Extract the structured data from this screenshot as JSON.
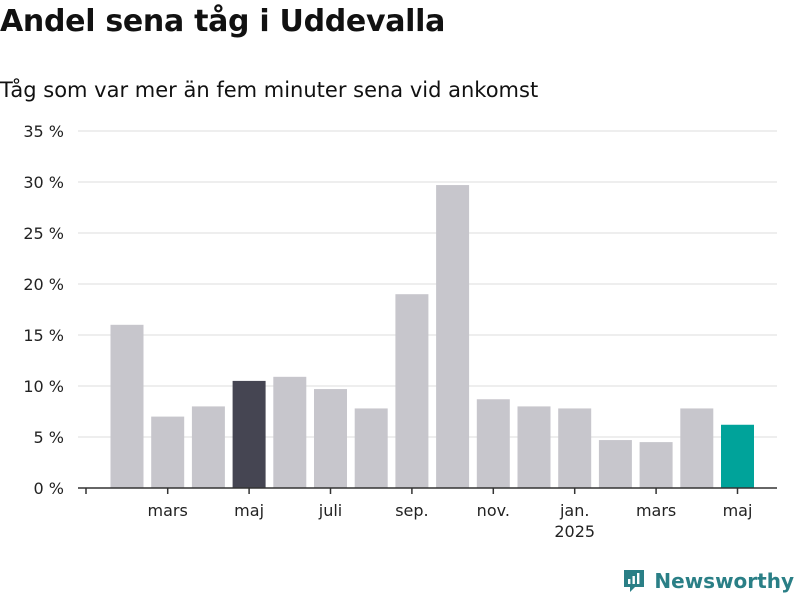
{
  "title": "Andel sena tåg i Uddevalla",
  "subtitle": "Tåg som var mer än fem minuter sena vid ankomst",
  "brand": "Newsworthy",
  "colors": {
    "bar_default": "#c7c6cc",
    "bar_highlight_dark": "#454552",
    "bar_highlight_latest": "#00a39a",
    "grid": "#dddddd",
    "axis": "#333333",
    "brand": "#2a7f86"
  },
  "chart_data": {
    "type": "bar",
    "title": "Andel sena tåg i Uddevalla",
    "subtitle": "Tåg som var mer än fem minuter sena vid ankomst",
    "xlabel": "",
    "ylabel": "",
    "y_unit": "%",
    "ylim": [
      0,
      35
    ],
    "yticks": [
      0,
      5,
      10,
      15,
      20,
      25,
      30,
      35
    ],
    "ytick_labels": [
      "0 %",
      "5 %",
      "10 %",
      "15 %",
      "20 %",
      "25 %",
      "30 %",
      "35 %"
    ],
    "grid": true,
    "legend": "none",
    "values": [
      16.0,
      7.0,
      8.0,
      10.5,
      10.9,
      9.7,
      7.8,
      19.0,
      29.7,
      8.7,
      8.0,
      7.8,
      4.7,
      4.5,
      7.8,
      6.2
    ],
    "highlight": {
      "3": "dark",
      "15": "latest"
    },
    "x_tick_labels": [
      {
        "index": 1,
        "label": "mars",
        "sub": ""
      },
      {
        "index": 3,
        "label": "maj",
        "sub": ""
      },
      {
        "index": 5,
        "label": "juli",
        "sub": ""
      },
      {
        "index": 7,
        "label": "sep.",
        "sub": ""
      },
      {
        "index": 9,
        "label": "nov.",
        "sub": ""
      },
      {
        "index": 11,
        "label": "jan.",
        "sub": "2025"
      },
      {
        "index": 13,
        "label": "mars",
        "sub": ""
      },
      {
        "index": 15,
        "label": "maj",
        "sub": ""
      }
    ]
  }
}
